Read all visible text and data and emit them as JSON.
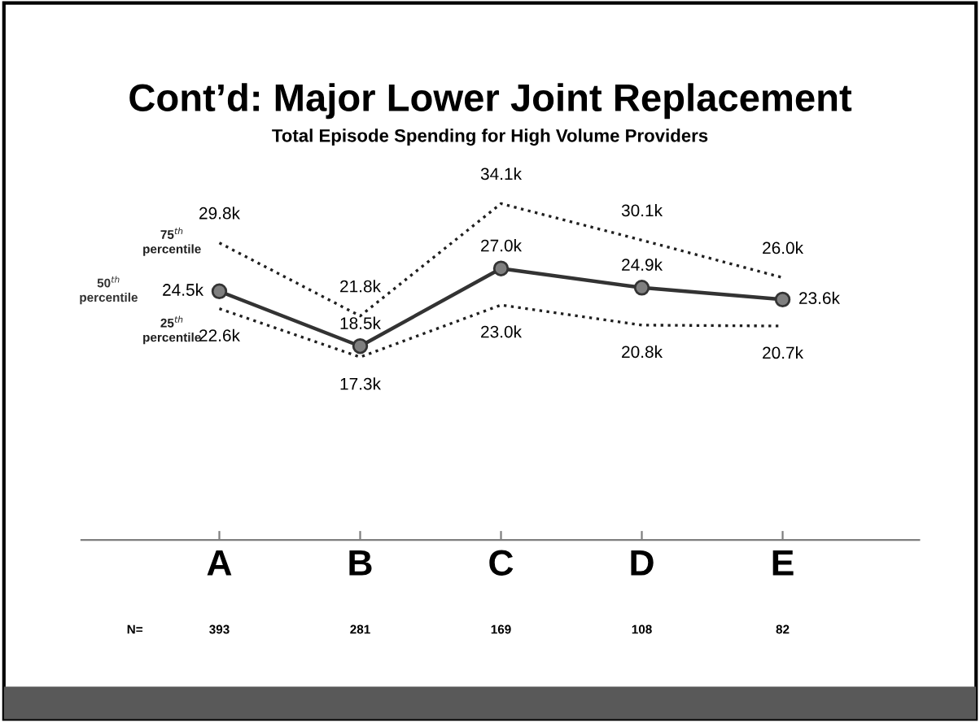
{
  "chart_data": {
    "type": "line",
    "title": "Cont’d: Major Lower Joint Replacement",
    "subtitle": "Total Episode Spending for High Volume Providers",
    "categories": [
      "A",
      "B",
      "C",
      "D",
      "E"
    ],
    "series": [
      {
        "name": "75$^{th}$ percentile",
        "color": "#1f1f1f",
        "line_style": "dotted",
        "marker": "none",
        "values": [
          29.8,
          21.8,
          34.1,
          30.1,
          26.0
        ],
        "value_labels": [
          "29.8k",
          "21.8k",
          "34.1k",
          "30.1k",
          "26.0k"
        ]
      },
      {
        "name": "50$^{th}$ percentile",
        "color": "#333333",
        "line_style": "solid",
        "marker": "circle",
        "values": [
          24.5,
          18.5,
          27.0,
          24.9,
          23.6
        ],
        "value_labels": [
          "24.5k",
          "18.5k",
          "27.0k",
          "24.9k",
          "23.6k"
        ]
      },
      {
        "name": "25$^{th}$ percentile",
        "color": "#1f1f1f",
        "line_style": "dotted",
        "marker": "none",
        "values": [
          22.6,
          17.3,
          23.0,
          20.8,
          20.7
        ],
        "value_labels": [
          "22.6k",
          "17.3k",
          "23.0k",
          "20.8k",
          "20.7k"
        ]
      }
    ],
    "annotations": [
      "N=",
      "393",
      "281",
      "169",
      "108",
      "82"
    ],
    "tick_labels": "x",
    "grid": false,
    "legend": false
  }
}
